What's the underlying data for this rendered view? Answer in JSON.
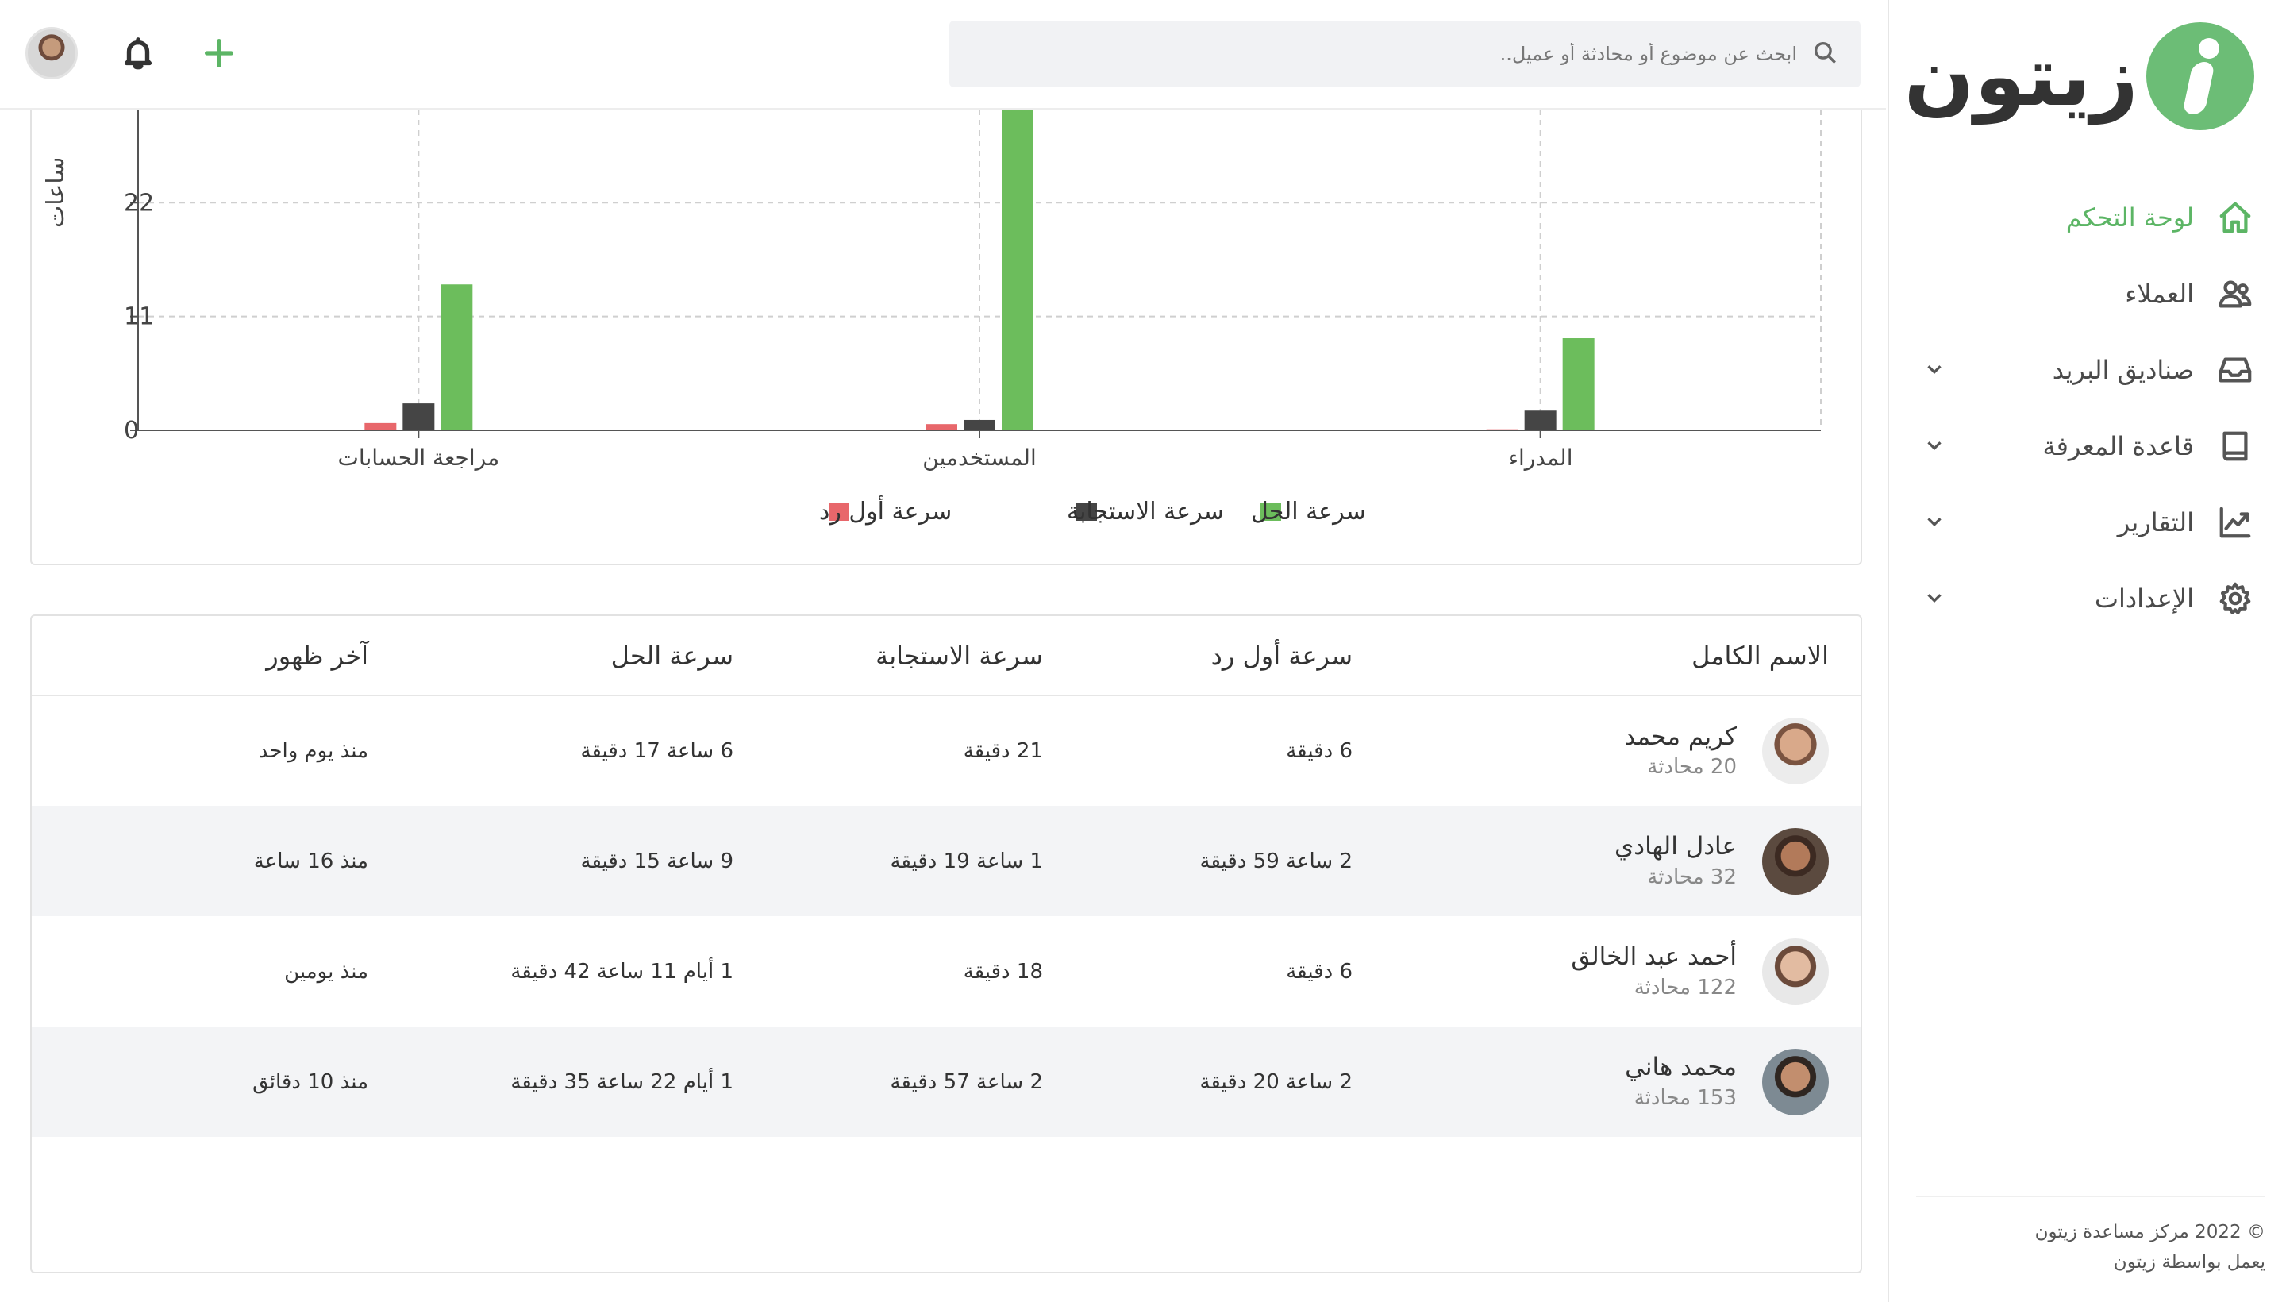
{
  "brand": {
    "name": "زيتون",
    "logo_icon": "zaytoon-logo-icon",
    "accent": "#6cbd76"
  },
  "sidebar": {
    "items": [
      {
        "label": "لوحة التحكم",
        "icon": "home-icon",
        "active": true,
        "has_chevron": false
      },
      {
        "label": "العملاء",
        "icon": "users-icon",
        "active": false,
        "has_chevron": false
      },
      {
        "label": "صناديق البريد",
        "icon": "inbox-icon",
        "active": false,
        "has_chevron": true
      },
      {
        "label": "قاعدة المعرفة",
        "icon": "book-icon",
        "active": false,
        "has_chevron": true
      },
      {
        "label": "التقارير",
        "icon": "chart-line-icon",
        "active": false,
        "has_chevron": true
      },
      {
        "label": "الإعدادات",
        "icon": "gear-icon",
        "active": false,
        "has_chevron": true
      }
    ],
    "footer": {
      "copyright": "© 2022 مركز مساعدة زيتون",
      "powered": "يعمل بواسطة زيتون"
    }
  },
  "header": {
    "search_placeholder": "ابحث عن موضوع أو محادثة أو عميل..",
    "actions": [
      "plus-icon",
      "bell-icon",
      "avatar"
    ]
  },
  "chart_data": {
    "type": "bar",
    "ylabel": "ساعات",
    "yticks": [
      0,
      11,
      22
    ],
    "ylim": [
      0,
      31
    ],
    "grid": true,
    "legend_position": "bottom",
    "categories": [
      "مراجعة الحسابات",
      "المستخدمين",
      "المدراء"
    ],
    "series": [
      {
        "name": "سرعة أول رد",
        "color": "#e8676b",
        "values": [
          0.7,
          0.6,
          0.1
        ]
      },
      {
        "name": "سرعة الاستجابة",
        "color": "#454545",
        "values": [
          2.6,
          1.0,
          1.9
        ]
      },
      {
        "name": "سرعة الحل",
        "color": "#6cbd5c",
        "values": [
          14.1,
          31,
          8.9
        ]
      }
    ],
    "legend_order": [
      "سرعة الحل",
      "سرعة الاستجابة",
      "سرعة أول رد"
    ]
  },
  "table": {
    "headers": {
      "name": "الاسم الكامل",
      "first_reply": "سرعة أول رد",
      "response": "سرعة الاستجابة",
      "resolution": "سرعة الحل",
      "last_seen": "آخر ظهور"
    },
    "rows": [
      {
        "name": "كريم محمد",
        "conversations": "20 محادثة",
        "first_reply": "6 دقيقة",
        "response": "21 دقيقة",
        "resolution": "6 ساعة 17 دقيقة",
        "last_seen": "منذ يوم واحد",
        "avatar_color": "#b8866a"
      },
      {
        "name": "عادل الهادي",
        "conversations": "32 محادثة",
        "first_reply": "2 ساعة 59 دقيقة",
        "response": "1 ساعة 19 دقيقة",
        "resolution": "9 ساعة 15 دقيقة",
        "last_seen": "منذ 16 ساعة",
        "avatar_color": "#7a4f38"
      },
      {
        "name": "أحمد عبد الخالق",
        "conversations": "122 محادثة",
        "first_reply": "6 دقيقة",
        "response": "18 دقيقة",
        "resolution": "1 أيام 11 ساعة 42 دقيقة",
        "last_seen": "منذ يومين",
        "avatar_color": "#caa48a"
      },
      {
        "name": "محمد هاني",
        "conversations": "153 محادثة",
        "first_reply": "2 ساعة 20 دقيقة",
        "response": "2 ساعة 57 دقيقة",
        "resolution": "1 أيام 22 ساعة 35 دقيقة",
        "last_seen": "منذ 10 دقائق",
        "avatar_color": "#9a6c55"
      }
    ]
  }
}
